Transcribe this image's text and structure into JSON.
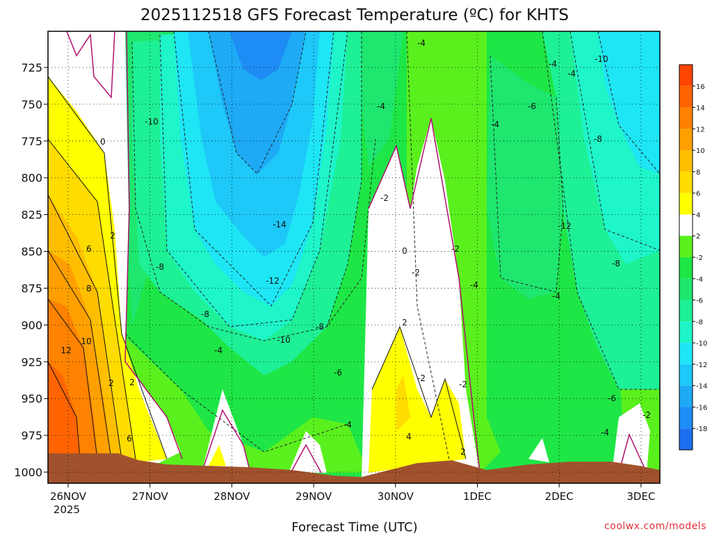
{
  "chart_data": {
    "type": "heatmap",
    "title": "2025112518 GFS Forecast Temperature (ºC) for KHTS",
    "xlabel": "Forecast Time (UTC)",
    "ylabel": "",
    "watermark": "coolwx.com/models",
    "x_ticks": [
      "26NOV",
      "27NOV",
      "28NOV",
      "29NOV",
      "30NOV",
      "1DEC",
      "2DEC",
      "3DEC"
    ],
    "x_year_label": "2025",
    "y_ticks": [
      725,
      750,
      775,
      800,
      825,
      850,
      875,
      900,
      925,
      950,
      975,
      1000
    ],
    "ylim": [
      1000,
      700
    ],
    "y_reversed": true,
    "grid": true,
    "colorbar": {
      "position": "right",
      "levels": [
        -20,
        -18,
        -16,
        -14,
        -12,
        -10,
        -8,
        -6,
        -4,
        -2,
        2,
        4,
        6,
        8,
        10,
        12,
        14,
        16,
        18
      ],
      "tick_labels": [
        "16",
        "14",
        "12",
        "10",
        "8",
        "6",
        "4",
        "2",
        "-2",
        "-4",
        "-6",
        "-8",
        "-10",
        "-12",
        "-14",
        "-16",
        "-18"
      ],
      "colors": [
        "#1e6ef0",
        "#1e8cf5",
        "#1eaaf5",
        "#1ec8f8",
        "#1ee6f5",
        "#1ef5c8",
        "#1ef096",
        "#1ee66e",
        "#1ee646",
        "#5af01e",
        "#ffffff",
        "#ffff00",
        "#ffdc00",
        "#ffbe00",
        "#ffa000",
        "#ff8200",
        "#ff6400",
        "#ff4600"
      ]
    },
    "contour_labels": [
      "0",
      "2",
      "6",
      "8",
      "10",
      "12",
      "2",
      "6",
      "-10",
      "-8",
      "-8",
      "-4",
      "2",
      "-14",
      "-12",
      "-10",
      "-8",
      "-6",
      "-4",
      "-4",
      "-2",
      "0",
      "-2",
      "2",
      "-2",
      "4",
      "-4",
      "-2",
      "-4",
      "-2",
      "2",
      "-4",
      "-6",
      "-4",
      "-4",
      "-4",
      "-8",
      "-10",
      "-12",
      "-8",
      "-6",
      "-4",
      "-2"
    ]
  }
}
